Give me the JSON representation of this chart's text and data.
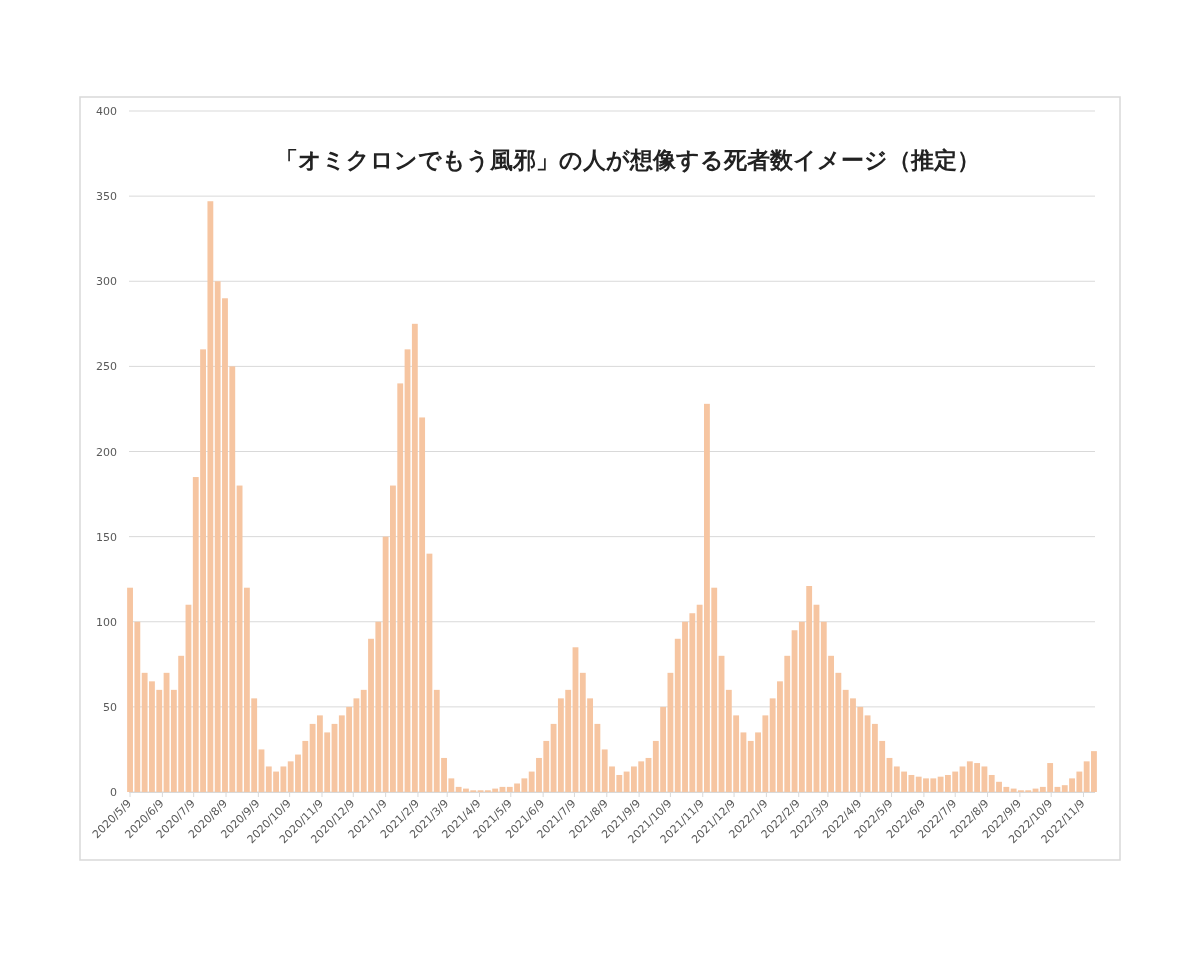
{
  "chart_data": {
    "type": "bar",
    "title": "「オミクロンでもう風邪」の人が想像する死者数イメージ（推定）",
    "color": "#f6c5a1",
    "grid": "y",
    "ylim": [
      0,
      400
    ],
    "yticks": [
      0,
      50,
      100,
      150,
      200,
      250,
      300,
      350,
      400
    ],
    "xlim": [
      "2020-05-08",
      "2022-11-20"
    ],
    "xticks": [
      {
        "value": "2020-05-09",
        "label": "2020/5/9"
      },
      {
        "value": "2020-06-09",
        "label": "2020/6/9"
      },
      {
        "value": "2020-07-09",
        "label": "2020/7/9"
      },
      {
        "value": "2020-08-09",
        "label": "2020/8/9"
      },
      {
        "value": "2020-09-09",
        "label": "2020/9/9"
      },
      {
        "value": "2020-10-09",
        "label": "2020/10/9"
      },
      {
        "value": "2020-11-09",
        "label": "2020/11/9"
      },
      {
        "value": "2020-12-09",
        "label": "2020/12/9"
      },
      {
        "value": "2021-01-09",
        "label": "2021/1/9"
      },
      {
        "value": "2021-02-09",
        "label": "2021/2/9"
      },
      {
        "value": "2021-03-09",
        "label": "2021/3/9"
      },
      {
        "value": "2021-04-09",
        "label": "2021/4/9"
      },
      {
        "value": "2021-05-09",
        "label": "2021/5/9"
      },
      {
        "value": "2021-06-09",
        "label": "2021/6/9"
      },
      {
        "value": "2021-07-09",
        "label": "2021/7/9"
      },
      {
        "value": "2021-08-09",
        "label": "2021/8/9"
      },
      {
        "value": "2021-09-09",
        "label": "2021/9/9"
      },
      {
        "value": "2021-10-09",
        "label": "2021/10/9"
      },
      {
        "value": "2021-11-09",
        "label": "2021/11/9"
      },
      {
        "value": "2021-12-09",
        "label": "2021/12/9"
      },
      {
        "value": "2022-01-09",
        "label": "2022/1/9"
      },
      {
        "value": "2022-02-09",
        "label": "2022/2/9"
      },
      {
        "value": "2022-03-09",
        "label": "2022/3/9"
      },
      {
        "value": "2022-04-09",
        "label": "2022/4/9"
      },
      {
        "value": "2022-05-09",
        "label": "2022/5/9"
      },
      {
        "value": "2022-06-09",
        "label": "2022/6/9"
      },
      {
        "value": "2022-07-09",
        "label": "2022/7/9"
      },
      {
        "value": "2022-08-09",
        "label": "2022/8/9"
      },
      {
        "value": "2022-09-09",
        "label": "2022/9/9"
      },
      {
        "value": "2022-10-09",
        "label": "2022/10/9"
      },
      {
        "value": "2022-11-09",
        "label": "2022/11/9"
      }
    ],
    "x": [
      "2020-05-09",
      "2020-05-16",
      "2020-05-23",
      "2020-05-30",
      "2020-06-06",
      "2020-06-13",
      "2020-06-20",
      "2020-06-27",
      "2020-07-04",
      "2020-07-11",
      "2020-07-18",
      "2020-07-25",
      "2020-08-01",
      "2020-08-08",
      "2020-08-15",
      "2020-08-22",
      "2020-08-29",
      "2020-09-05",
      "2020-09-12",
      "2020-09-19",
      "2020-09-26",
      "2020-10-03",
      "2020-10-10",
      "2020-10-17",
      "2020-10-24",
      "2020-10-31",
      "2020-11-07",
      "2020-11-14",
      "2020-11-21",
      "2020-11-28",
      "2020-12-05",
      "2020-12-12",
      "2020-12-19",
      "2020-12-26",
      "2021-01-02",
      "2021-01-09",
      "2021-01-16",
      "2021-01-23",
      "2021-01-30",
      "2021-02-06",
      "2021-02-13",
      "2021-02-20",
      "2021-02-27",
      "2021-03-06",
      "2021-03-13",
      "2021-03-20",
      "2021-03-27",
      "2021-04-03",
      "2021-04-10",
      "2021-04-17",
      "2021-04-24",
      "2021-05-01",
      "2021-05-08",
      "2021-05-15",
      "2021-05-22",
      "2021-05-29",
      "2021-06-05",
      "2021-06-12",
      "2021-06-19",
      "2021-06-26",
      "2021-07-03",
      "2021-07-10",
      "2021-07-17",
      "2021-07-24",
      "2021-07-31",
      "2021-08-07",
      "2021-08-14",
      "2021-08-21",
      "2021-08-28",
      "2021-09-04",
      "2021-09-11",
      "2021-09-18",
      "2021-09-25",
      "2021-10-02",
      "2021-10-09",
      "2021-10-16",
      "2021-10-23",
      "2021-10-30",
      "2021-11-06",
      "2021-11-13",
      "2021-11-20",
      "2021-11-27",
      "2021-12-04",
      "2021-12-11",
      "2021-12-18",
      "2021-12-25",
      "2022-01-01",
      "2022-01-08",
      "2022-01-15",
      "2022-01-22",
      "2022-01-29",
      "2022-02-05",
      "2022-02-12",
      "2022-02-19",
      "2022-02-26",
      "2022-03-05",
      "2022-03-12",
      "2022-03-19",
      "2022-03-26",
      "2022-04-02",
      "2022-04-09",
      "2022-04-16",
      "2022-04-23",
      "2022-04-30",
      "2022-05-07",
      "2022-05-14",
      "2022-05-21",
      "2022-05-28",
      "2022-06-04",
      "2022-06-11",
      "2022-06-18",
      "2022-06-25",
      "2022-07-02",
      "2022-07-09",
      "2022-07-16",
      "2022-07-23",
      "2022-07-30",
      "2022-08-06",
      "2022-08-13",
      "2022-08-20",
      "2022-08-27",
      "2022-09-03",
      "2022-09-10",
      "2022-09-17",
      "2022-09-24",
      "2022-10-01",
      "2022-10-08",
      "2022-10-15",
      "2022-10-22",
      "2022-10-29",
      "2022-11-05",
      "2022-11-12",
      "2022-11-19"
    ],
    "values": [
      120,
      100,
      70,
      65,
      60,
      70,
      60,
      80,
      110,
      185,
      260,
      347,
      300,
      290,
      250,
      180,
      120,
      55,
      25,
      15,
      12,
      15,
      18,
      22,
      30,
      40,
      45,
      35,
      40,
      45,
      50,
      55,
      60,
      90,
      100,
      150,
      180,
      240,
      260,
      275,
      220,
      140,
      60,
      20,
      8,
      3,
      2,
      1,
      1,
      1,
      2,
      3,
      3,
      5,
      8,
      12,
      20,
      30,
      40,
      55,
      60,
      85,
      70,
      55,
      40,
      25,
      15,
      10,
      12,
      15,
      18,
      20,
      30,
      50,
      70,
      90,
      100,
      105,
      110,
      228,
      120,
      80,
      60,
      45,
      35,
      30,
      35,
      45,
      55,
      65,
      80,
      95,
      100,
      121,
      110,
      100,
      80,
      70,
      60,
      55,
      50,
      45,
      40,
      30,
      20,
      15,
      12,
      10,
      9,
      8,
      8,
      9,
      10,
      12,
      15,
      18,
      17,
      15,
      10,
      6,
      3,
      2,
      1,
      1,
      2,
      3,
      17,
      3,
      4,
      8,
      12,
      18,
      24
    ]
  }
}
